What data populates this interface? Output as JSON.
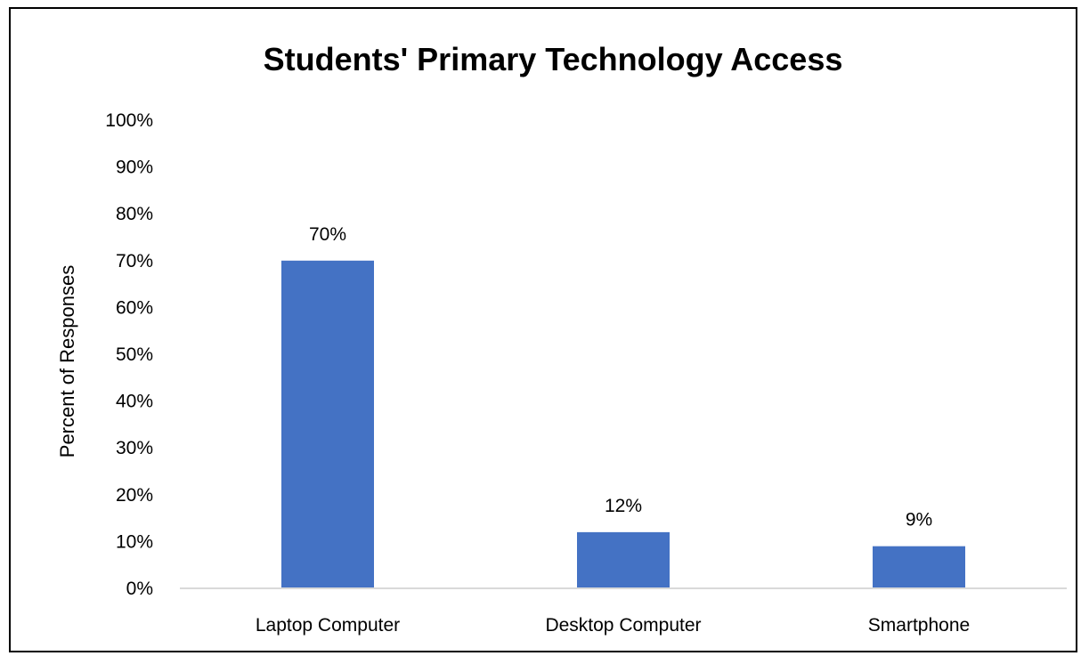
{
  "chart_data": {
    "type": "bar",
    "title": "Students' Primary Technology Access",
    "xlabel": "",
    "ylabel": "Percent of Responses",
    "categories": [
      "Laptop Computer",
      "Desktop Computer",
      "Smartphone"
    ],
    "values": [
      70,
      12,
      9
    ],
    "data_labels": [
      "70%",
      "12%",
      "9%"
    ],
    "y_ticks": [
      "0%",
      "10%",
      "20%",
      "30%",
      "40%",
      "50%",
      "60%",
      "70%",
      "80%",
      "90%",
      "100%"
    ],
    "ylim": [
      0,
      100
    ],
    "grid": false,
    "legend": "none",
    "bar_color": "#4472C4"
  }
}
